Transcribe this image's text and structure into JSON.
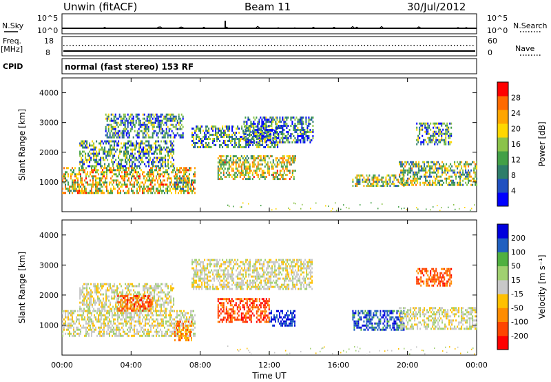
{
  "header": {
    "station": "Unwin (fitACF)",
    "beam": "Beam 11",
    "date": "30/Jul/2012"
  },
  "panels": {
    "nsky_label": "N.Sky",
    "nsky_ticks": [
      "10^5",
      "10^0"
    ],
    "nsearch_label": "N.Search",
    "nsearch_ticks": [
      "10^5",
      "10^0"
    ],
    "freq_label": "Freq.",
    "freq_unit": "[MHz]",
    "freq_ticks": [
      "18",
      "8"
    ],
    "nave_label": "Nave",
    "nave_ticks": [
      "60",
      "0"
    ],
    "cpid_label": "CPID",
    "cpid_value": "normal (fast stereo) 153 RF"
  },
  "colors": {
    "frame": "#000000",
    "power_scale": [
      "#0000ff",
      "#2050c0",
      "#2e7d6a",
      "#43a047",
      "#8bc34a",
      "#ffd700",
      "#ffa500",
      "#ff6a00",
      "#ff0000"
    ],
    "velocity_scale": [
      "#ff0000",
      "#ff4500",
      "#ff8c00",
      "#ffc000",
      "#c8c8c8",
      "#a0d070",
      "#50b040",
      "#2060c0",
      "#0000dd"
    ]
  },
  "chart_data": [
    {
      "type": "heatmap",
      "name": "power",
      "xlabel": "",
      "ylabel": "Slant Range [km]",
      "ylim": [
        0,
        4500
      ],
      "yticks": [
        "4000",
        "3000",
        "2000",
        "1000"
      ],
      "colorbar": {
        "label": "Power [dB]",
        "ticks": [
          "28",
          "24",
          "20",
          "16",
          "12",
          "8",
          "4"
        ],
        "range": [
          0,
          30
        ]
      },
      "echo_regions": [
        {
          "t0": 0.0,
          "t1": 7.7,
          "r0": 650,
          "r1": 1500,
          "level": 18
        },
        {
          "t0": 1.0,
          "t1": 6.5,
          "r0": 1500,
          "r1": 2400,
          "level": 10
        },
        {
          "t0": 2.5,
          "t1": 7.0,
          "r0": 2500,
          "r1": 3300,
          "level": 9
        },
        {
          "t0": 7.5,
          "t1": 12.5,
          "r0": 2200,
          "r1": 2900,
          "level": 10
        },
        {
          "t0": 10.5,
          "t1": 14.5,
          "r0": 2300,
          "r1": 3200,
          "level": 8
        },
        {
          "t0": 9.0,
          "t1": 13.5,
          "r0": 1100,
          "r1": 1900,
          "level": 17
        },
        {
          "t0": 6.5,
          "t1": 7.5,
          "r0": 750,
          "r1": 1150,
          "level": 14
        },
        {
          "t0": 16.8,
          "t1": 19.8,
          "r0": 850,
          "r1": 1250,
          "level": 14
        },
        {
          "t0": 19.5,
          "t1": 24.0,
          "r0": 900,
          "r1": 1700,
          "level": 14
        },
        {
          "t0": 20.5,
          "t1": 22.5,
          "r0": 2300,
          "r1": 3000,
          "level": 10
        }
      ]
    },
    {
      "type": "heatmap",
      "name": "velocity",
      "xlabel": "Time UT",
      "ylabel": "Slant Range [km]",
      "ylim": [
        0,
        4500
      ],
      "yticks": [
        "4000",
        "3000",
        "2000",
        "1000"
      ],
      "xticks": [
        "00:00",
        "04:00",
        "08:00",
        "12:00",
        "16:00",
        "20:00",
        "00:00"
      ],
      "xlim": [
        0,
        24
      ],
      "colorbar": {
        "label": "Velocity [m s⁻¹]",
        "ticks": [
          "200",
          "100",
          "50",
          "15",
          "-15",
          "-50",
          "-100",
          "-200"
        ],
        "range": [
          -250,
          250
        ]
      },
      "echo_regions": [
        {
          "t0": 0.0,
          "t1": 7.7,
          "r0": 650,
          "r1": 1500,
          "level": 0
        },
        {
          "t0": 1.0,
          "t1": 6.5,
          "r0": 1500,
          "r1": 2400,
          "level": 0
        },
        {
          "t0": 3.2,
          "t1": 5.2,
          "r0": 1500,
          "r1": 2000,
          "level": -150
        },
        {
          "t0": 6.5,
          "t1": 7.5,
          "r0": 500,
          "r1": 1150,
          "level": -120
        },
        {
          "t0": 7.5,
          "t1": 14.5,
          "r0": 2200,
          "r1": 3200,
          "level": 0
        },
        {
          "t0": 9.0,
          "t1": 12.0,
          "r0": 1100,
          "r1": 1900,
          "level": -170
        },
        {
          "t0": 12.0,
          "t1": 13.5,
          "r0": 1000,
          "r1": 1500,
          "level": 200
        },
        {
          "t0": 16.8,
          "t1": 19.8,
          "r0": 850,
          "r1": 1500,
          "level": 180
        },
        {
          "t0": 19.5,
          "t1": 24.0,
          "r0": 900,
          "r1": 1600,
          "level": 0
        },
        {
          "t0": 20.5,
          "t1": 22.5,
          "r0": 2300,
          "r1": 2900,
          "level": -150
        }
      ]
    }
  ]
}
